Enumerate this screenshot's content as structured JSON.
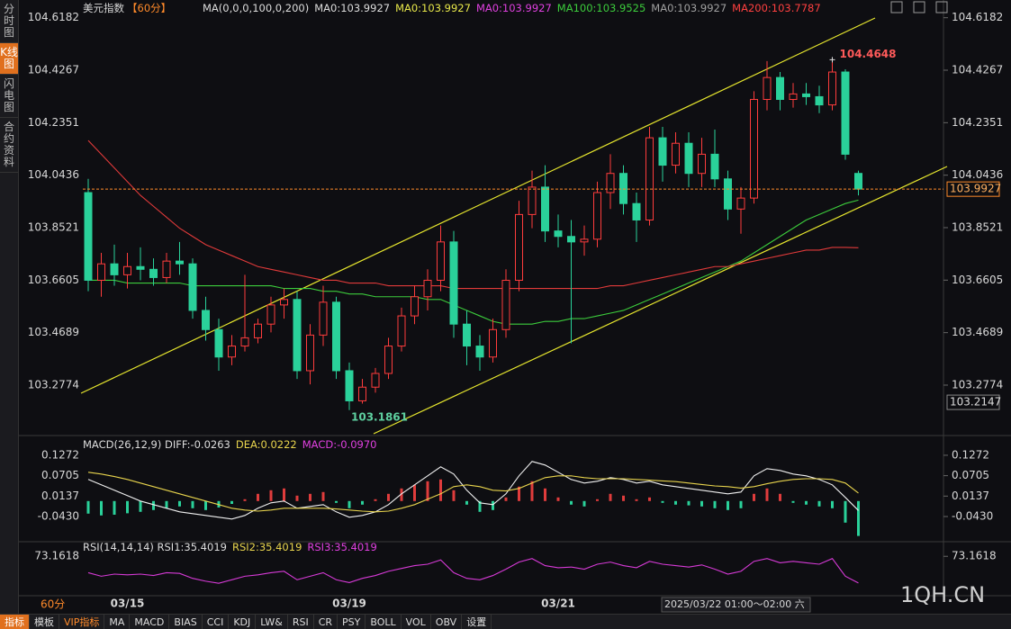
{
  "sidebar": [
    "分时图",
    "K线图",
    "闪电图",
    "合约资料"
  ],
  "toolbar": [
    "指标",
    "模板",
    "VIP指标",
    "MA",
    "MACD",
    "BIAS",
    "CCI",
    "KDJ",
    "LW&",
    "RSI",
    "CR",
    "PSY",
    "BOLL",
    "VOL",
    "OBV",
    "设置"
  ],
  "footer": {
    "period": "60分",
    "time": "2025/03/22 01:00～02:00 六",
    "watermark": "1QH.CN"
  },
  "chart_data": [
    {
      "type": "candlestick",
      "title": "美元指数",
      "period": "【60分】",
      "legend": [
        {
          "text": "MA(0,0,0,100,0,200)",
          "color": "#dddddd"
        },
        {
          "text": "MA0:103.9927",
          "color": "#dddddd"
        },
        {
          "text": "MA0:103.9927",
          "color": "#e8e84a"
        },
        {
          "text": "MA0:103.9927",
          "color": "#e040e0"
        },
        {
          "text": "MA100:103.9525",
          "color": "#3ccc3c"
        },
        {
          "text": "MA0:103.9927",
          "color": "#a0a0a0"
        },
        {
          "text": "MA200:103.7787",
          "color": "#ff4040"
        }
      ],
      "categories": [
        null,
        null,
        null,
        "03/15",
        null,
        null,
        null,
        null,
        null,
        null,
        null,
        null,
        null,
        null,
        null,
        null,
        null,
        null,
        null,
        null,
        "03/19",
        null,
        null,
        null,
        null,
        null,
        null,
        null,
        null,
        null,
        null,
        null,
        null,
        null,
        null,
        null,
        "03/21",
        null,
        null,
        null,
        null,
        null,
        null,
        null,
        null,
        null,
        null,
        null,
        null,
        null,
        null,
        null,
        null,
        null,
        null,
        null,
        null,
        null,
        null,
        null
      ],
      "open": [
        103.98,
        103.66,
        103.72,
        103.68,
        103.71,
        103.7,
        103.67,
        103.73,
        103.72,
        103.55,
        103.48,
        103.38,
        103.42,
        103.45,
        103.5,
        103.57,
        103.59,
        103.33,
        103.46,
        103.58,
        103.33,
        103.22,
        103.27,
        103.32,
        103.42,
        103.53,
        103.6,
        103.66,
        103.8,
        103.5,
        103.42,
        103.38,
        103.48,
        103.66,
        103.9,
        104.0,
        103.84,
        103.82,
        103.8,
        103.81,
        103.98,
        104.05,
        103.94,
        103.88,
        104.18,
        104.08,
        104.16,
        104.05,
        104.12,
        104.03,
        103.92,
        103.96,
        104.32,
        104.4,
        104.32,
        104.34,
        104.33,
        104.3,
        104.42,
        104.05
      ],
      "high": [
        104.03,
        103.76,
        103.79,
        103.76,
        103.78,
        103.74,
        103.76,
        103.8,
        103.74,
        103.6,
        103.52,
        103.46,
        103.68,
        103.52,
        103.6,
        103.63,
        103.62,
        103.5,
        103.64,
        103.6,
        103.36,
        103.3,
        103.34,
        103.45,
        103.56,
        103.64,
        103.7,
        103.86,
        103.84,
        103.55,
        103.46,
        103.52,
        103.7,
        103.95,
        104.06,
        104.08,
        103.9,
        103.88,
        103.86,
        104.02,
        104.12,
        104.08,
        103.98,
        104.22,
        104.22,
        104.2,
        104.2,
        104.18,
        104.21,
        104.06,
        104.0,
        104.35,
        104.46,
        104.42,
        104.38,
        104.38,
        104.37,
        104.4648,
        104.43,
        104.06
      ],
      "low": [
        103.62,
        103.6,
        103.64,
        103.63,
        103.66,
        103.64,
        103.65,
        103.68,
        103.52,
        103.44,
        103.33,
        103.35,
        103.4,
        103.43,
        103.47,
        103.52,
        103.3,
        103.28,
        103.42,
        103.3,
        103.1861,
        103.21,
        103.25,
        103.3,
        103.4,
        103.5,
        103.55,
        103.62,
        103.45,
        103.35,
        103.33,
        103.36,
        103.45,
        103.62,
        103.85,
        103.8,
        103.78,
        103.43,
        103.75,
        103.78,
        103.92,
        103.9,
        103.8,
        103.86,
        104.02,
        104.05,
        104.0,
        104.0,
        104.0,
        103.88,
        103.83,
        103.94,
        104.28,
        104.28,
        104.29,
        104.3,
        104.27,
        104.28,
        104.1,
        103.97
      ],
      "close": [
        103.66,
        103.72,
        103.68,
        103.71,
        103.7,
        103.67,
        103.73,
        103.72,
        103.55,
        103.48,
        103.38,
        103.42,
        103.45,
        103.5,
        103.57,
        103.59,
        103.33,
        103.46,
        103.58,
        103.33,
        103.22,
        103.27,
        103.32,
        103.42,
        103.53,
        103.6,
        103.66,
        103.8,
        103.5,
        103.42,
        103.38,
        103.48,
        103.66,
        103.9,
        104.0,
        103.84,
        103.82,
        103.8,
        103.81,
        103.98,
        104.05,
        103.94,
        103.88,
        104.18,
        104.08,
        104.16,
        104.05,
        104.12,
        104.03,
        103.92,
        103.96,
        104.32,
        104.4,
        104.32,
        104.34,
        104.33,
        104.3,
        104.42,
        104.12,
        103.9927
      ],
      "up_color": "#ff3c3c",
      "down_color": "#2ad19a",
      "series": [
        {
          "color": "#3ccc3c",
          "values": [
            103.66,
            103.66,
            103.66,
            103.65,
            103.65,
            103.65,
            103.65,
            103.65,
            103.64,
            103.64,
            103.64,
            103.64,
            103.64,
            103.64,
            103.64,
            103.63,
            103.63,
            103.63,
            103.62,
            103.62,
            103.61,
            103.61,
            103.6,
            103.6,
            103.6,
            103.6,
            103.59,
            103.59,
            103.57,
            103.55,
            103.53,
            103.51,
            103.5,
            103.5,
            103.5,
            103.51,
            103.51,
            103.52,
            103.52,
            103.53,
            103.54,
            103.55,
            103.57,
            103.59,
            103.61,
            103.63,
            103.65,
            103.67,
            103.69,
            103.71,
            103.73,
            103.76,
            103.79,
            103.82,
            103.85,
            103.88,
            103.9,
            103.92,
            103.94,
            103.9525
          ]
        },
        {
          "color": "#e03a3a",
          "values": [
            104.17,
            104.12,
            104.07,
            104.02,
            103.97,
            103.93,
            103.89,
            103.85,
            103.82,
            103.79,
            103.77,
            103.75,
            103.73,
            103.71,
            103.7,
            103.69,
            103.68,
            103.67,
            103.66,
            103.66,
            103.65,
            103.65,
            103.65,
            103.64,
            103.64,
            103.64,
            103.64,
            103.64,
            103.63,
            103.63,
            103.63,
            103.63,
            103.63,
            103.63,
            103.63,
            103.63,
            103.63,
            103.63,
            103.63,
            103.63,
            103.64,
            103.64,
            103.65,
            103.66,
            103.67,
            103.68,
            103.69,
            103.7,
            103.71,
            103.71,
            103.72,
            103.73,
            103.74,
            103.75,
            103.76,
            103.77,
            103.77,
            103.78,
            103.78,
            103.7787
          ]
        }
      ],
      "ylim": [
        103.1,
        104.65
      ],
      "yticks": [
        104.6182,
        104.4267,
        104.2351,
        104.0436,
        103.8521,
        103.6605,
        103.4689,
        103.2774
      ],
      "right_axis_markers": [
        103.9927,
        103.2147
      ],
      "max_label": 104.4648,
      "min_label": 103.1861
    },
    {
      "type": "macd",
      "legend": [
        {
          "text": "MACD(26,12,9) DIFF:-0.0263",
          "color": "#dddddd"
        },
        {
          "text": "DEA:0.0222",
          "color": "#e8d44d"
        },
        {
          "text": "MACD:-0.0970",
          "color": "#e040e0"
        }
      ],
      "values": [
        -0.035,
        -0.04,
        -0.038,
        -0.034,
        -0.03,
        -0.025,
        -0.02,
        -0.015,
        -0.02,
        -0.025,
        -0.018,
        -0.008,
        0.005,
        0.02,
        0.03,
        0.035,
        0.015,
        0.02,
        0.025,
        -0.005,
        -0.02,
        -0.01,
        0.005,
        0.02,
        0.035,
        0.045,
        0.055,
        0.06,
        0.03,
        -0.01,
        -0.03,
        -0.025,
        0.01,
        0.04,
        0.055,
        0.035,
        0.01,
        -0.01,
        -0.015,
        0.005,
        0.02,
        0.015,
        0.005,
        0.01,
        -0.005,
        -0.01,
        -0.012,
        -0.015,
        -0.02,
        -0.025,
        -0.02,
        0.02,
        0.035,
        0.02,
        -0.005,
        -0.01,
        -0.015,
        -0.02,
        -0.06,
        -0.097
      ],
      "up_color": "#e03c3c",
      "down_color": "#2ad19a",
      "series": [
        {
          "color": "#f0f0f0",
          "values": [
            0.06,
            0.045,
            0.03,
            0.015,
            0.0,
            -0.01,
            -0.02,
            -0.03,
            -0.035,
            -0.04,
            -0.045,
            -0.05,
            -0.04,
            -0.02,
            -0.005,
            0.0,
            -0.02,
            -0.015,
            -0.01,
            -0.03,
            -0.045,
            -0.04,
            -0.03,
            -0.01,
            0.02,
            0.045,
            0.07,
            0.095,
            0.075,
            0.03,
            -0.005,
            -0.01,
            0.02,
            0.07,
            0.11,
            0.1,
            0.08,
            0.06,
            0.05,
            0.055,
            0.065,
            0.06,
            0.05,
            0.055,
            0.045,
            0.04,
            0.035,
            0.03,
            0.025,
            0.02,
            0.025,
            0.07,
            0.09,
            0.085,
            0.075,
            0.07,
            0.06,
            0.045,
            0.01,
            -0.0263
          ]
        },
        {
          "color": "#e8d44d",
          "values": [
            0.08,
            0.075,
            0.068,
            0.06,
            0.05,
            0.04,
            0.03,
            0.02,
            0.01,
            0.0,
            -0.01,
            -0.02,
            -0.025,
            -0.028,
            -0.025,
            -0.02,
            -0.02,
            -0.02,
            -0.02,
            -0.022,
            -0.025,
            -0.028,
            -0.03,
            -0.028,
            -0.02,
            -0.01,
            0.005,
            0.02,
            0.04,
            0.045,
            0.04,
            0.03,
            0.028,
            0.035,
            0.05,
            0.065,
            0.07,
            0.07,
            0.065,
            0.062,
            0.062,
            0.062,
            0.06,
            0.058,
            0.056,
            0.054,
            0.05,
            0.046,
            0.042,
            0.04,
            0.036,
            0.04,
            0.048,
            0.055,
            0.06,
            0.062,
            0.062,
            0.06,
            0.05,
            0.0222
          ]
        }
      ],
      "ylim": [
        -0.108,
        0.162
      ],
      "yticks": [
        0.1272,
        0.0705,
        0.0137,
        {
          "value": -0.043,
          "label": "-0.0430"
        }
      ]
    },
    {
      "type": "line",
      "legend": [
        {
          "text": "RSI(14,14,14) RSI1:35.4019",
          "color": "#dddddd"
        },
        {
          "text": "RSI2:35.4019",
          "color": "#e8d44d"
        },
        {
          "text": "RSI3:35.4019",
          "color": "#e040e0"
        }
      ],
      "series": [
        {
          "color": "#d63ad6",
          "values": [
            50,
            45,
            48,
            47,
            48,
            46,
            50,
            49,
            42,
            38,
            35,
            40,
            45,
            47,
            50,
            52,
            40,
            45,
            50,
            40,
            36,
            42,
            46,
            52,
            56,
            60,
            62,
            68,
            50,
            42,
            40,
            46,
            55,
            65,
            70,
            60,
            57,
            58,
            55,
            62,
            65,
            60,
            57,
            66,
            62,
            60,
            58,
            61,
            55,
            48,
            52,
            66,
            70,
            64,
            66,
            64,
            62,
            70,
            45,
            35.4019
          ]
        }
      ],
      "ylim": [
        20,
        90
      ],
      "yticks": [
        73.1618
      ]
    }
  ]
}
